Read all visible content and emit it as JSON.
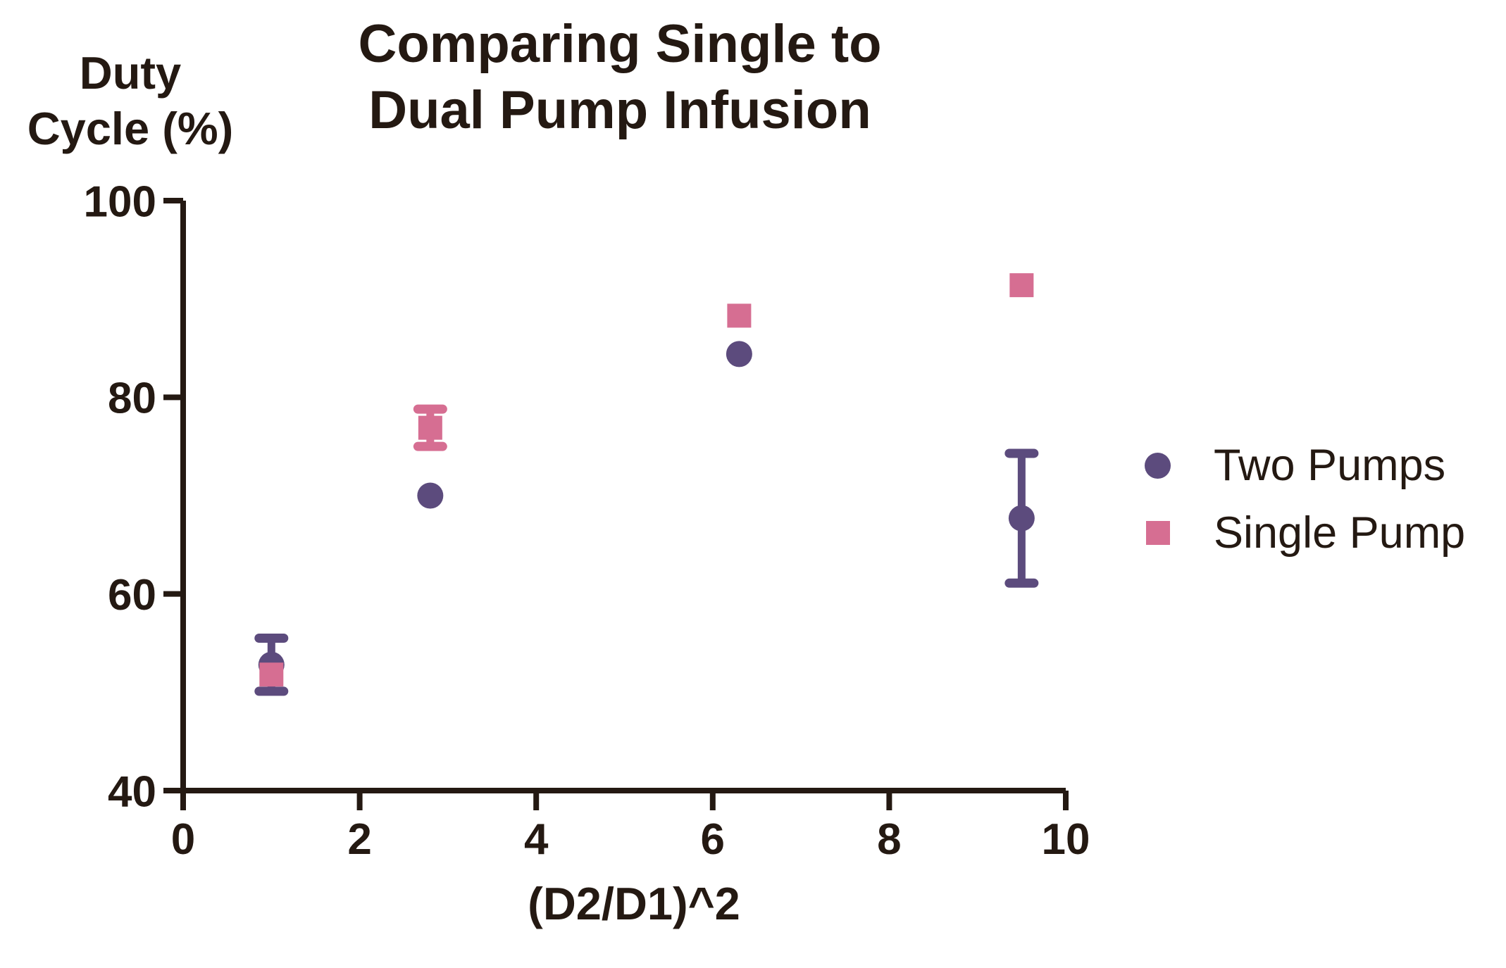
{
  "chart_data": {
    "type": "scatter",
    "title": "Comparing Single to Dual Pump Infusion",
    "title_lines": [
      "Comparing Single to",
      "Dual Pump Infusion"
    ],
    "ylabel": "Duty Cycle (%)",
    "ylabel_lines": [
      "Duty",
      "Cycle (%)"
    ],
    "xlabel": "(D2/D1)^2",
    "xlim": [
      0,
      10
    ],
    "ylim": [
      40,
      100
    ],
    "x_ticks": [
      0,
      2,
      4,
      6,
      8,
      10
    ],
    "y_ticks": [
      100,
      80,
      60,
      40
    ],
    "grid": false,
    "legend_position": "right-center",
    "axis_color": "#241912",
    "text_color": "#241912",
    "series": [
      {
        "name": "Two Pumps",
        "marker": "circle",
        "color": "#5C4B7D",
        "points": [
          {
            "x": 1.0,
            "y": 52.8,
            "yerr": 2.7
          },
          {
            "x": 2.8,
            "y": 70.0
          },
          {
            "x": 6.3,
            "y": 84.4
          },
          {
            "x": 9.5,
            "y": 67.7,
            "yerr": 6.6
          }
        ]
      },
      {
        "name": "Single Pump",
        "marker": "square",
        "color": "#D66E92",
        "points": [
          {
            "x": 1.0,
            "y": 51.8
          },
          {
            "x": 2.8,
            "y": 76.9,
            "yerr": 1.9
          },
          {
            "x": 6.3,
            "y": 88.3
          },
          {
            "x": 9.5,
            "y": 91.4
          }
        ]
      }
    ]
  }
}
